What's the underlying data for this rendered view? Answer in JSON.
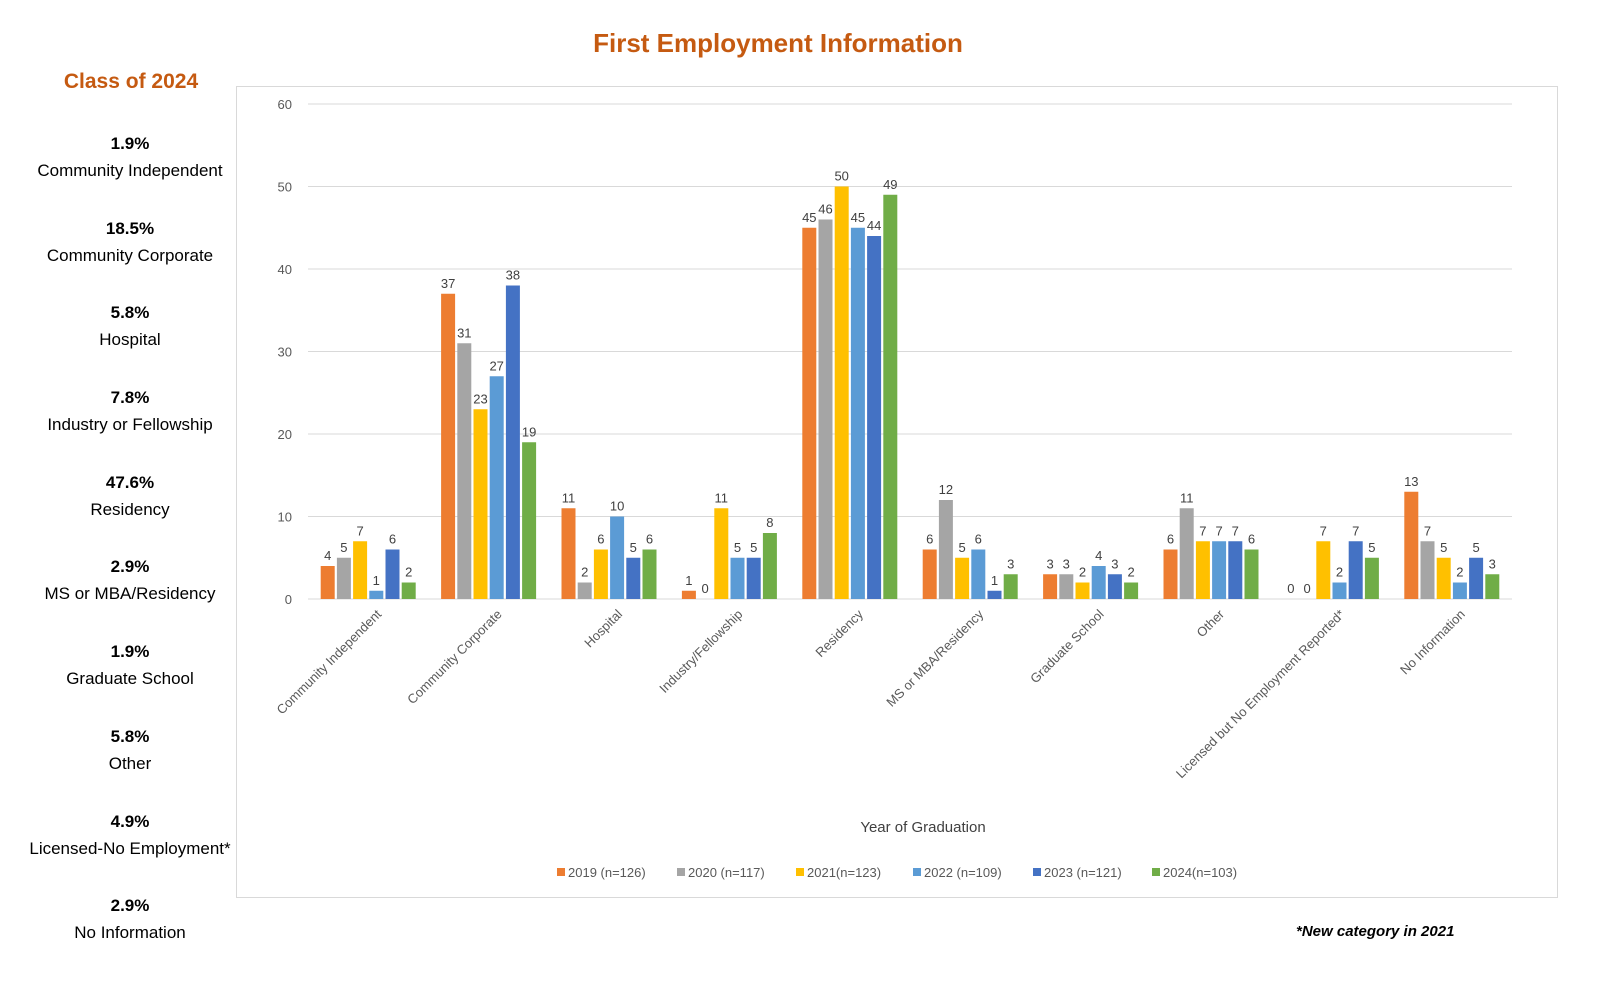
{
  "page": {
    "title": "First Employment Information",
    "class_title": "Class of 2024",
    "footnote": "*New category in 2021"
  },
  "sidebar": {
    "items": [
      {
        "pct": "1.9%",
        "label": "Community Independent"
      },
      {
        "pct": "18.5%",
        "label": "Community Corporate"
      },
      {
        "pct": "5.8%",
        "label": "Hospital"
      },
      {
        "pct": "7.8%",
        "label": "Industry or Fellowship"
      },
      {
        "pct": "47.6%",
        "label": "Residency"
      },
      {
        "pct": "2.9%",
        "label": "MS or MBA/Residency"
      },
      {
        "pct": "1.9%",
        "label": "Graduate School"
      },
      {
        "pct": "5.8%",
        "label": "Other"
      },
      {
        "pct": "4.9%",
        "label": "Licensed-No Employment*"
      },
      {
        "pct": "2.9%",
        "label": "No Information"
      }
    ]
  },
  "chart_data": {
    "type": "bar",
    "title": "",
    "xlabel": "Year of Graduation",
    "ylabel": "",
    "ylim": [
      0,
      60
    ],
    "yticks": [
      0,
      10,
      20,
      30,
      40,
      50,
      60
    ],
    "grid": true,
    "legend_position": "bottom",
    "categories": [
      "Community Independent",
      "Community Corporate",
      "Hospital",
      "Industry/Fellowship",
      "Residency",
      "MS or MBA/Residency",
      "Graduate School",
      "Other",
      "Licensed but No Employment Reported*",
      "No Information"
    ],
    "series": [
      {
        "name": "2019 (n=126)",
        "color": "#ed7d31",
        "values": [
          4,
          37,
          11,
          1,
          45,
          6,
          3,
          6,
          0,
          13
        ]
      },
      {
        "name": "2020 (n=117)",
        "color": "#a5a5a5",
        "values": [
          5,
          31,
          2,
          0,
          46,
          12,
          3,
          11,
          0,
          7
        ]
      },
      {
        "name": "2021(n=123)",
        "color": "#ffc000",
        "values": [
          7,
          23,
          6,
          11,
          50,
          5,
          2,
          7,
          7,
          5
        ]
      },
      {
        "name": "2022 (n=109)",
        "color": "#5b9bd5",
        "values": [
          1,
          27,
          10,
          5,
          45,
          6,
          4,
          7,
          2,
          2
        ]
      },
      {
        "name": "2023 (n=121)",
        "color": "#4472c4",
        "values": [
          6,
          38,
          5,
          5,
          44,
          1,
          3,
          7,
          7,
          5
        ]
      },
      {
        "name": "2024(n=103)",
        "color": "#70ad47",
        "values": [
          2,
          19,
          6,
          8,
          49,
          3,
          2,
          6,
          5,
          3
        ]
      }
    ]
  },
  "colors": {
    "title": "#c55a11",
    "grid": "#d9d9d9",
    "axis_text": "#595959"
  }
}
